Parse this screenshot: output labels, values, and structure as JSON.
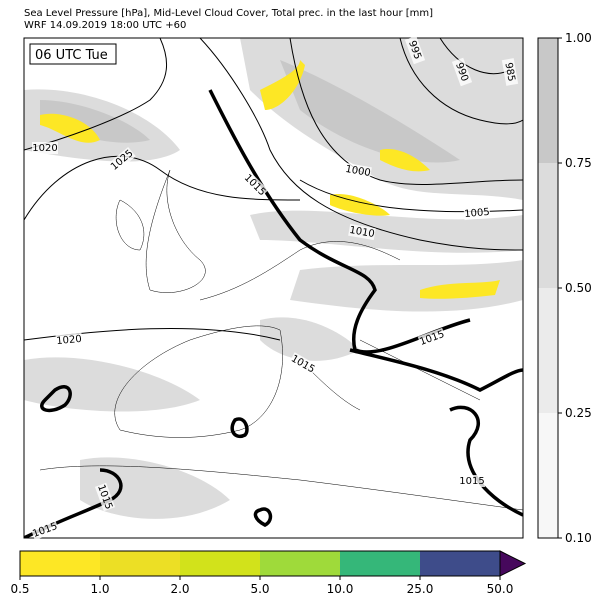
{
  "header": {
    "title": "Sea Level Pressure [hPa], Mid-Level Cloud Cover, Total prec. in the last hour [mm]",
    "subtitle": "WRF 14.09.2019 18:00 UTC +60"
  },
  "map": {
    "time_label": "06 UTC Tue",
    "contour_labels": [
      "1020",
      "1025",
      "1015",
      "1000",
      "1005",
      "1010",
      "995",
      "990",
      "985",
      "1020",
      "1015",
      "1015",
      "1015",
      "1015",
      "1015"
    ]
  },
  "cloud_colorbar": {
    "ticks": [
      "1.00",
      "0.75",
      "0.50",
      "0.25",
      "0.10"
    ],
    "colors": [
      "#c8c8c8",
      "#dcdcdc",
      "#ebebeb",
      "#f7f7f7"
    ]
  },
  "precip_colorbar": {
    "ticks": [
      "0.5",
      "1.0",
      "2.0",
      "5.0",
      "10.0",
      "25.0",
      "50.0"
    ],
    "colors": [
      "#fde725",
      "#ecdf25",
      "#d2e21b",
      "#9fda3a",
      "#35b779",
      "#3e4c8a"
    ],
    "extend_color": "#46085c"
  }
}
